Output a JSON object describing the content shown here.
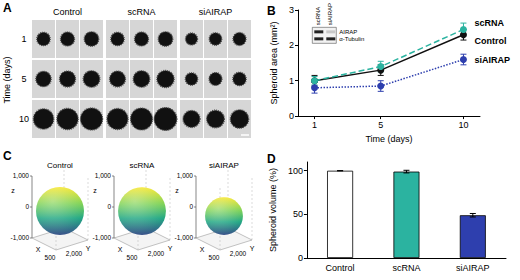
{
  "chart_data": [
    {
      "type": "image_grid",
      "title": "A",
      "ylabel": "Time (days)",
      "columns": [
        "Control",
        "scRNA",
        "siAIRAP"
      ],
      "rows": [
        1,
        5,
        10
      ]
    },
    {
      "type": "line",
      "title": "B",
      "xlabel": "Time (days)",
      "ylabel": "Spheroid area (mm²)",
      "x": [
        1,
        5,
        10
      ],
      "xlim": [
        0,
        11
      ],
      "xticks": [
        1,
        5,
        10
      ],
      "ylim": [
        0,
        3
      ],
      "yticks": [
        0,
        1,
        2,
        3
      ],
      "grid": false,
      "series": [
        {
          "name": "Control",
          "color": "#111111",
          "line_style": "solid",
          "marker": "circle",
          "values": [
            1.0,
            1.3,
            2.3
          ],
          "errors": [
            0.15,
            0.15,
            0.15
          ]
        },
        {
          "name": "scRNA",
          "color": "#2bb3a0",
          "line_style": "dashed",
          "marker": "circle",
          "values": [
            1.0,
            1.4,
            2.45
          ],
          "errors": [
            0.12,
            0.15,
            0.18
          ]
        },
        {
          "name": "siAIRAP",
          "color": "#2e3fae",
          "line_style": "dotted",
          "marker": "circle",
          "values": [
            0.8,
            0.85,
            1.6
          ],
          "errors": [
            0.15,
            0.15,
            0.15
          ]
        }
      ],
      "annotations": [
        {
          "x": 5,
          "y": 0.5,
          "text": "*"
        },
        {
          "x": 10,
          "y": 1.25,
          "text": "*"
        }
      ],
      "inset": {
        "columns": [
          "scRNA",
          "siAIRAP"
        ],
        "rows": [
          "AIRAP",
          "α-Tubulin"
        ]
      }
    },
    {
      "type": "sphere3d",
      "title": "C",
      "panels": [
        "Control",
        "scRNA",
        "siAIRAP"
      ],
      "xlabel": "X",
      "ylabel": "Y",
      "zlabel": "z",
      "xticks": [
        500
      ],
      "yticks": [
        {
          "value": 2000,
          "label": "2,000"
        }
      ],
      "zticks": [
        {
          "value": -1000,
          "label": "-1,000"
        },
        0,
        {
          "value": 1000,
          "label": "1,000"
        }
      ]
    },
    {
      "type": "bar",
      "title": "D",
      "ylabel": "Spheroid volume (%)",
      "categories": [
        "Control",
        "scRNA",
        "siAIRAP"
      ],
      "values": [
        100,
        99,
        49
      ],
      "errors": [
        0,
        1.5,
        2
      ],
      "colors": [
        "#ffffff",
        "#2bb3a0",
        "#2e3fae"
      ],
      "ylim": [
        0,
        110
      ],
      "yticks": [
        0,
        50,
        100
      ],
      "annotations": [
        {
          "x": "siAIRAP",
          "y": 55,
          "text": "*"
        }
      ]
    }
  ]
}
